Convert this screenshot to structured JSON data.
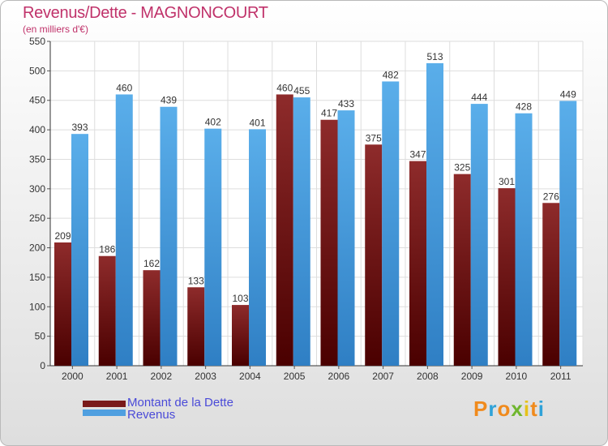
{
  "chart_data": {
    "type": "bar",
    "title": "Revenus/Dette - MAGNONCOURT",
    "subtitle": "(en milliers d'€)",
    "categories": [
      "2000",
      "2001",
      "2002",
      "2003",
      "2004",
      "2005",
      "2006",
      "2007",
      "2008",
      "2009",
      "2010",
      "2011"
    ],
    "series": [
      {
        "name": "Montant de la Dette",
        "color": "#7a1a1a",
        "values": [
          209,
          186,
          162,
          133,
          103,
          460,
          417,
          375,
          347,
          325,
          301,
          276
        ]
      },
      {
        "name": "Revenus",
        "color": "#4f9fe0",
        "values": [
          393,
          460,
          439,
          402,
          401,
          455,
          433,
          482,
          513,
          444,
          428,
          449
        ]
      }
    ],
    "yticks": [
      0,
      50,
      100,
      150,
      200,
      250,
      300,
      350,
      400,
      450,
      500,
      550
    ],
    "ylim": [
      0,
      550
    ],
    "grid": true,
    "legend_position": "bottom-left"
  },
  "logo": {
    "text": "Proxiti",
    "colors": [
      "#f08a1c",
      "#2fa2d8",
      "#f08a1c",
      "#6fb62e",
      "#e6c21a",
      "#f08a1c",
      "#2fa2d8"
    ]
  }
}
